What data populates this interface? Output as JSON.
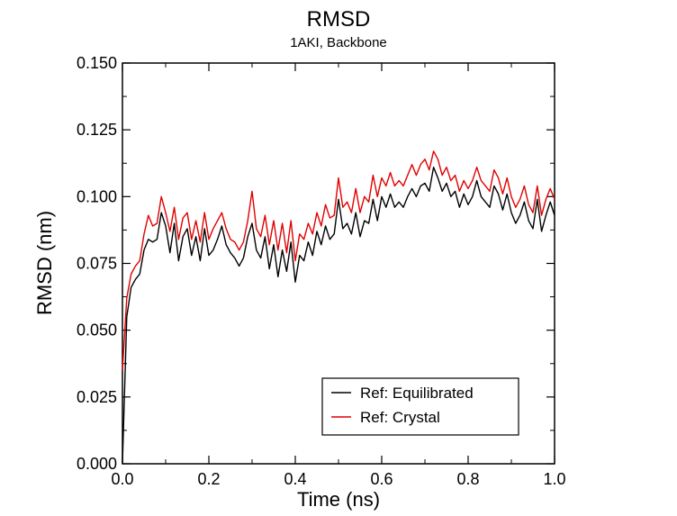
{
  "chart_data": {
    "type": "line",
    "title": "RMSD",
    "subtitle": "1AKI, Backbone",
    "xlabel": "Time (ns)",
    "ylabel": "RMSD (nm)",
    "xlim": [
      0,
      1.0
    ],
    "ylim": [
      0,
      0.15
    ],
    "x_ticks": [
      0.0,
      0.2,
      0.4,
      0.6,
      0.8,
      1.0
    ],
    "x_tick_labels": [
      "0.0",
      "0.2",
      "0.4",
      "0.6",
      "0.8",
      "1.0"
    ],
    "y_ticks": [
      0,
      0.025,
      0.05,
      0.075,
      0.1,
      0.125,
      0.15
    ],
    "y_tick_labels": [
      "0.000",
      "0.025",
      "0.050",
      "0.075",
      "0.100",
      "0.125",
      "0.150"
    ],
    "grid": false,
    "legend_position": "bottom-right",
    "x": [
      0.0,
      0.01,
      0.02,
      0.03,
      0.04,
      0.05,
      0.06,
      0.07,
      0.08,
      0.09,
      0.1,
      0.11,
      0.12,
      0.13,
      0.14,
      0.15,
      0.16,
      0.17,
      0.18,
      0.19,
      0.2,
      0.21,
      0.22,
      0.23,
      0.24,
      0.25,
      0.26,
      0.27,
      0.28,
      0.29,
      0.3,
      0.31,
      0.32,
      0.33,
      0.34,
      0.35,
      0.36,
      0.37,
      0.38,
      0.39,
      0.4,
      0.41,
      0.42,
      0.43,
      0.44,
      0.45,
      0.46,
      0.47,
      0.48,
      0.49,
      0.5,
      0.51,
      0.52,
      0.53,
      0.54,
      0.55,
      0.56,
      0.57,
      0.58,
      0.59,
      0.6,
      0.61,
      0.62,
      0.63,
      0.64,
      0.65,
      0.66,
      0.67,
      0.68,
      0.69,
      0.7,
      0.71,
      0.72,
      0.73,
      0.74,
      0.75,
      0.76,
      0.77,
      0.78,
      0.79,
      0.8,
      0.81,
      0.82,
      0.83,
      0.84,
      0.85,
      0.86,
      0.87,
      0.88,
      0.89,
      0.9,
      0.91,
      0.92,
      0.93,
      0.94,
      0.95,
      0.96,
      0.97,
      0.98,
      0.99,
      1.0
    ],
    "series": [
      {
        "name": "Ref: Equilibrated",
        "color": "#000000",
        "values": [
          0.0,
          0.055,
          0.066,
          0.069,
          0.071,
          0.08,
          0.084,
          0.083,
          0.084,
          0.094,
          0.089,
          0.079,
          0.09,
          0.076,
          0.085,
          0.088,
          0.078,
          0.085,
          0.076,
          0.088,
          0.078,
          0.08,
          0.084,
          0.089,
          0.082,
          0.079,
          0.077,
          0.074,
          0.077,
          0.085,
          0.09,
          0.08,
          0.077,
          0.085,
          0.073,
          0.082,
          0.07,
          0.08,
          0.072,
          0.083,
          0.068,
          0.078,
          0.076,
          0.083,
          0.078,
          0.087,
          0.082,
          0.089,
          0.084,
          0.086,
          0.099,
          0.088,
          0.09,
          0.086,
          0.094,
          0.085,
          0.091,
          0.09,
          0.099,
          0.091,
          0.1,
          0.096,
          0.101,
          0.096,
          0.098,
          0.096,
          0.1,
          0.103,
          0.1,
          0.104,
          0.105,
          0.102,
          0.111,
          0.107,
          0.102,
          0.105,
          0.1,
          0.102,
          0.096,
          0.101,
          0.097,
          0.1,
          0.106,
          0.1,
          0.098,
          0.096,
          0.104,
          0.101,
          0.095,
          0.101,
          0.094,
          0.09,
          0.093,
          0.098,
          0.091,
          0.088,
          0.099,
          0.087,
          0.093,
          0.098,
          0.093
        ]
      },
      {
        "name": "Ref: Crystal",
        "color": "#e00000",
        "values": [
          0.035,
          0.062,
          0.071,
          0.074,
          0.076,
          0.086,
          0.093,
          0.089,
          0.09,
          0.1,
          0.094,
          0.087,
          0.096,
          0.084,
          0.092,
          0.094,
          0.084,
          0.091,
          0.083,
          0.094,
          0.084,
          0.088,
          0.091,
          0.094,
          0.088,
          0.084,
          0.083,
          0.08,
          0.083,
          0.091,
          0.102,
          0.088,
          0.085,
          0.093,
          0.082,
          0.091,
          0.08,
          0.09,
          0.079,
          0.091,
          0.076,
          0.086,
          0.084,
          0.09,
          0.086,
          0.094,
          0.089,
          0.097,
          0.092,
          0.093,
          0.107,
          0.096,
          0.098,
          0.094,
          0.103,
          0.094,
          0.1,
          0.098,
          0.108,
          0.1,
          0.107,
          0.104,
          0.109,
          0.104,
          0.106,
          0.104,
          0.108,
          0.112,
          0.108,
          0.112,
          0.114,
          0.11,
          0.117,
          0.114,
          0.108,
          0.111,
          0.106,
          0.108,
          0.102,
          0.106,
          0.103,
          0.106,
          0.111,
          0.106,
          0.104,
          0.102,
          0.11,
          0.107,
          0.101,
          0.107,
          0.1,
          0.096,
          0.099,
          0.104,
          0.097,
          0.094,
          0.104,
          0.093,
          0.099,
          0.103,
          0.099
        ]
      }
    ]
  }
}
